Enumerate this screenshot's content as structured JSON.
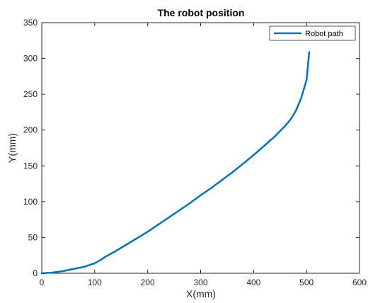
{
  "chart_data": {
    "type": "line",
    "title": "The robot position",
    "xlabel": "X(mm)",
    "ylabel": "Y(mm)",
    "xlim": [
      0,
      600
    ],
    "ylim": [
      0,
      350
    ],
    "xticks": [
      "0",
      "100",
      "200",
      "300",
      "400",
      "500",
      "600"
    ],
    "yticks": [
      "0",
      "50",
      "100",
      "150",
      "200",
      "250",
      "300",
      "350"
    ],
    "grid": false,
    "legend_position": "top-right",
    "colors": {
      "series": "#0072BD",
      "axis": "#262626"
    },
    "series": [
      {
        "name": "Robot path",
        "x": [
          0,
          20,
          40,
          60,
          80,
          100,
          110,
          120,
          140,
          160,
          180,
          200,
          220,
          240,
          260,
          280,
          300,
          320,
          340,
          360,
          380,
          400,
          420,
          440,
          460,
          470,
          480,
          490,
          500,
          505
        ],
        "y": [
          0,
          1,
          3,
          6,
          9,
          14,
          18,
          23,
          31,
          40,
          49,
          58,
          68,
          78,
          88,
          98,
          109,
          119,
          130,
          141,
          153,
          165,
          178,
          191,
          206,
          215,
          227,
          245,
          270,
          309
        ]
      }
    ]
  }
}
